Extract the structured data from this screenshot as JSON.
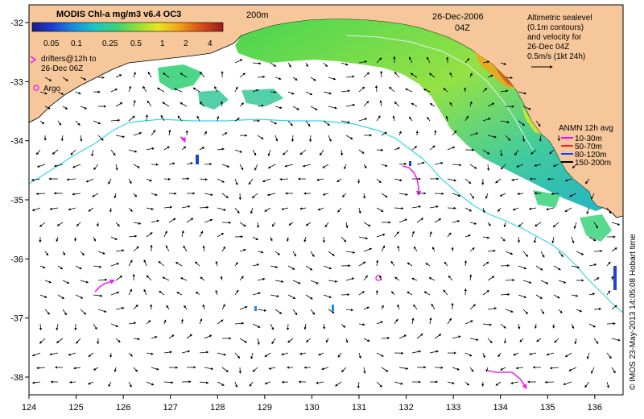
{
  "colorbar": {
    "title": "MODIS Chl-a mg/m3 v6.4 OC3",
    "ticks": [
      "0.05",
      "0.1",
      "0.25",
      "0.5",
      "1",
      "2",
      "4"
    ],
    "stops": [
      "#1a1a8c",
      "#1f3fd6",
      "#1a8fe0",
      "#1ac8c8",
      "#39d27a",
      "#8fe03a",
      "#e6e620",
      "#f2a21a",
      "#d9501a",
      "#9c1a1a"
    ]
  },
  "labels": {
    "isobath": "200m",
    "date": "26-Dec-2006",
    "time": "04Z",
    "altimetry": [
      "Altimetric sealevel",
      "(0.1m contours)",
      "and velocity for",
      "26-Dec 04Z",
      "0.5m/s (1kt 24h)"
    ],
    "drifters": [
      "drifters@12h to",
      "26-Dec 06Z"
    ],
    "argo": "Argo",
    "anmn_title": "ANMN 12h avg",
    "credit": "© IMOS 23-May-2013 14:05:08 Hobart time"
  },
  "anmn_legend": [
    {
      "label": "10-30m",
      "color": "#ff00ff"
    },
    {
      "label": "50-70m",
      "color": "#ff2020"
    },
    {
      "label": "80-120m",
      "color": "#1f3fff"
    },
    {
      "label": "150-200m",
      "color": "#000000"
    }
  ],
  "axes": {
    "x_ticks": [
      "124",
      "125",
      "126",
      "127",
      "128",
      "129",
      "130",
      "131",
      "132",
      "133",
      "134",
      "135",
      "136"
    ],
    "y_ticks": [
      "-32",
      "-33",
      "-34",
      "-35",
      "-36",
      "-37",
      "-38"
    ]
  },
  "colors": {
    "land": "#f5c79a",
    "isobath": "#36d7e6",
    "drifter": "#ee22ee",
    "arrow": "#000000"
  }
}
